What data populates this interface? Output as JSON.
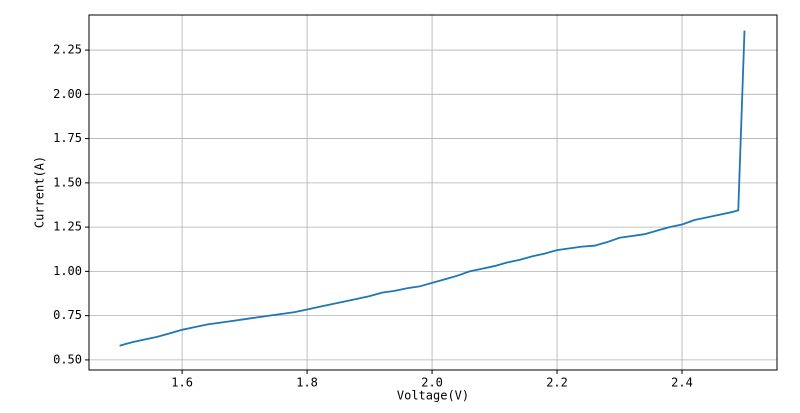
{
  "chart_data": {
    "type": "line",
    "xlabel": "Voltage(V)",
    "ylabel": "Current(A)",
    "x": [
      1.5,
      1.52,
      1.54,
      1.56,
      1.58,
      1.6,
      1.62,
      1.64,
      1.66,
      1.68,
      1.7,
      1.72,
      1.74,
      1.76,
      1.78,
      1.8,
      1.82,
      1.84,
      1.86,
      1.88,
      1.9,
      1.92,
      1.94,
      1.96,
      1.98,
      2.0,
      2.02,
      2.04,
      2.06,
      2.08,
      2.1,
      2.12,
      2.14,
      2.16,
      2.18,
      2.2,
      2.22,
      2.24,
      2.26,
      2.28,
      2.3,
      2.32,
      2.34,
      2.36,
      2.38,
      2.4,
      2.42,
      2.44,
      2.46,
      2.48,
      2.49,
      2.5
    ],
    "series": [
      {
        "color": "#1f77b4",
        "values": [
          0.58,
          0.6,
          0.615,
          0.63,
          0.65,
          0.67,
          0.685,
          0.7,
          0.71,
          0.72,
          0.73,
          0.74,
          0.75,
          0.76,
          0.77,
          0.785,
          0.8,
          0.815,
          0.83,
          0.845,
          0.86,
          0.88,
          0.89,
          0.905,
          0.915,
          0.935,
          0.955,
          0.975,
          1.0,
          1.015,
          1.03,
          1.05,
          1.065,
          1.085,
          1.1,
          1.12,
          1.13,
          1.14,
          1.145,
          1.165,
          1.19,
          1.2,
          1.21,
          1.23,
          1.25,
          1.265,
          1.29,
          1.305,
          1.32,
          1.335,
          1.345,
          2.36
        ]
      }
    ],
    "xlim": [
      1.451,
      2.552
    ],
    "ylim": [
      0.443,
      2.448
    ],
    "xticks": [
      1.6,
      1.8,
      {
        "value": 2.0,
        "label": "2.0"
      },
      2.2,
      2.4
    ],
    "yticks": [
      {
        "value": 0.5,
        "label": "0.50"
      },
      0.75,
      {
        "value": 1.0,
        "label": "1.00"
      },
      1.25,
      {
        "value": 1.5,
        "label": "1.50"
      },
      1.75,
      {
        "value": 2.0,
        "label": "2.00"
      },
      2.25
    ],
    "grid": true
  }
}
